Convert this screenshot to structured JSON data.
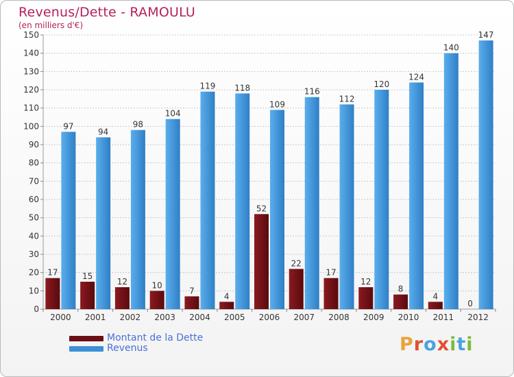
{
  "title": "Revenus/Dette - RAMOULU",
  "subtitle": "(en milliers d'€)",
  "brand": {
    "letters": [
      "P",
      "r",
      "o",
      "x",
      "i",
      "t",
      "i"
    ]
  },
  "colors": {
    "debt": "#6b0f14",
    "revenue": "#3d8fd6",
    "title": "#b5205a",
    "legend_text": "#4a6fd8"
  },
  "legend": {
    "debt_label": "Montant de la Dette",
    "revenue_label": "Revenus"
  },
  "chart_data": {
    "type": "bar",
    "title": "Revenus/Dette - RAMOULU",
    "ylabel": "(en milliers d'€)",
    "xlabel": "",
    "ylim": [
      0,
      150
    ],
    "ytick_step": 10,
    "grid": true,
    "legend_position": "bottom-left",
    "categories": [
      "2000",
      "2001",
      "2002",
      "2003",
      "2004",
      "2005",
      "2006",
      "2007",
      "2008",
      "2009",
      "2010",
      "2011",
      "2012"
    ],
    "series": [
      {
        "name": "Montant de la Dette",
        "values": [
          17,
          15,
          12,
          10,
          7,
          4,
          52,
          22,
          17,
          12,
          8,
          4,
          0
        ]
      },
      {
        "name": "Revenus",
        "values": [
          97,
          94,
          98,
          104,
          119,
          118,
          109,
          116,
          112,
          120,
          124,
          140,
          147
        ]
      }
    ]
  }
}
